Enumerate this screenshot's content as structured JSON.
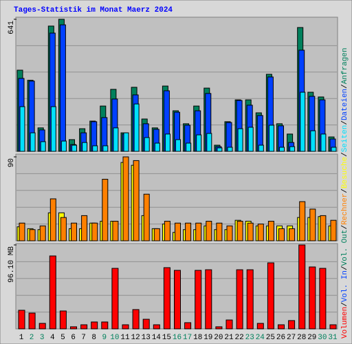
{
  "legend_separator": "/",
  "chart_data": [
    {
      "type": "bar",
      "title": "Tages-Statistik im Monat Maerz 2024",
      "ylim": [
        0,
        641
      ],
      "yticks": [
        641
      ],
      "grid": true,
      "series": [
        {
          "name": "Anfragen",
          "color": "#00805c",
          "values": [
            394,
            345,
            114,
            608,
            641,
            57,
            110,
            147,
            220,
            301,
            90,
            311,
            157,
            114,
            317,
            197,
            134,
            220,
            307,
            30,
            144,
            250,
            250,
            187,
            374,
            134,
            84,
            601,
            287,
            264,
            70
          ]
        },
        {
          "name": "Dateien",
          "color": "#0040ff",
          "values": [
            354,
            341,
            104,
            574,
            614,
            33,
            90,
            144,
            164,
            254,
            84,
            274,
            134,
            107,
            294,
            190,
            127,
            197,
            281,
            23,
            140,
            247,
            224,
            174,
            361,
            124,
            43,
            491,
            267,
            250,
            60
          ]
        },
        {
          "name": "Seiten",
          "color": "#00e0ff",
          "values": [
            217,
            90,
            47,
            217,
            50,
            30,
            43,
            27,
            27,
            114,
            90,
            230,
            67,
            40,
            84,
            57,
            40,
            80,
            87,
            17,
            20,
            110,
            117,
            30,
            127,
            20,
            23,
            287,
            100,
            84,
            20
          ]
        }
      ]
    },
    {
      "type": "bar",
      "ylim": [
        0,
        90
      ],
      "yticks": [
        90
      ],
      "grid": true,
      "series": [
        {
          "name": "Besuche",
          "color": "#ffff00",
          "values": [
            15,
            13,
            12,
            30,
            30,
            13,
            13,
            19,
            21,
            21,
            84,
            81,
            27,
            13,
            18,
            9,
            12,
            12,
            16,
            12,
            12,
            22,
            21,
            16,
            16,
            16,
            16,
            25,
            25,
            26,
            16
          ]
        },
        {
          "name": "Rechner",
          "color": "#ff8000",
          "values": [
            19,
            12,
            16,
            45,
            25,
            19,
            27,
            19,
            66,
            21,
            90,
            86,
            50,
            13,
            21,
            19,
            19,
            19,
            21,
            19,
            16,
            21,
            19,
            18,
            21,
            13,
            13,
            42,
            34,
            27,
            22
          ]
        }
      ]
    },
    {
      "type": "bar",
      "ylim": [
        0,
        96.1
      ],
      "yticks": [
        {
          "value": 96.1,
          "label": "96.10 MB"
        }
      ],
      "grid": true,
      "categories": [
        "1",
        "2",
        "3",
        "4",
        "5",
        "6",
        "7",
        "8",
        "9",
        "10",
        "11",
        "12",
        "13",
        "14",
        "15",
        "16",
        "17",
        "18",
        "19",
        "20",
        "21",
        "22",
        "23",
        "24",
        "25",
        "26",
        "27",
        "28",
        "29",
        "30",
        "31"
      ],
      "category_colors": [
        "#000000",
        "#00805c",
        "#00805c",
        "#000000",
        "#000000",
        "#000000",
        "#000000",
        "#000000",
        "#00805c",
        "#00805c",
        "#000000",
        "#000000",
        "#000000",
        "#000000",
        "#000000",
        "#00805c",
        "#00805c",
        "#000000",
        "#000000",
        "#000000",
        "#000000",
        "#000000",
        "#00805c",
        "#00805c",
        "#000000",
        "#000000",
        "#000000",
        "#000000",
        "#000000",
        "#00805c",
        "#00805c"
      ],
      "series": [
        {
          "name": "Volumen",
          "color": "#ff0000",
          "values": [
            21.3,
            18.1,
            6.3,
            83.5,
            20.5,
            2.4,
            4.7,
            7.9,
            7.9,
            69.3,
            4.7,
            22.1,
            11.0,
            4.7,
            70.1,
            67.0,
            7.1,
            67.0,
            67.7,
            2.4,
            10.2,
            67.7,
            67.7,
            6.3,
            75.6,
            4.7,
            9.5,
            96.1,
            70.9,
            69.3,
            4.7
          ]
        }
      ],
      "legend_extra": [
        {
          "name": "Vol. In",
          "color": "#0040ff"
        },
        {
          "name": "Vol. Out",
          "color": "#00805c"
        }
      ]
    }
  ]
}
